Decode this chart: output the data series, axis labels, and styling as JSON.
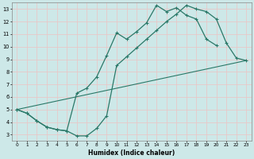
{
  "xlabel": "Humidex (Indice chaleur)",
  "xlim": [
    -0.5,
    23.5
  ],
  "ylim": [
    2.5,
    13.5
  ],
  "xticks": [
    0,
    1,
    2,
    3,
    4,
    5,
    6,
    7,
    8,
    9,
    10,
    11,
    12,
    13,
    14,
    15,
    16,
    17,
    18,
    19,
    20,
    21,
    22,
    23
  ],
  "yticks": [
    3,
    4,
    5,
    6,
    7,
    8,
    9,
    10,
    11,
    12,
    13
  ],
  "bg_color": "#cde8e8",
  "line_color": "#2a7868",
  "grid_color": "#e8c8c8",
  "curve1_x": [
    0,
    1,
    2,
    3,
    4,
    5,
    6,
    7,
    8,
    9,
    10,
    11,
    12,
    13,
    14,
    15,
    16,
    17,
    18,
    19,
    20
  ],
  "curve1_y": [
    5.0,
    4.7,
    4.1,
    3.6,
    3.4,
    3.3,
    6.3,
    6.7,
    7.6,
    9.3,
    11.1,
    10.6,
    11.2,
    11.9,
    13.3,
    12.8,
    13.1,
    12.5,
    12.2,
    10.6,
    10.1
  ],
  "curve2_x": [
    0,
    1,
    2,
    3,
    4,
    5,
    6,
    7,
    8,
    9,
    10,
    11,
    12,
    13,
    14,
    15,
    16,
    17,
    18,
    19,
    20,
    21,
    22,
    23
  ],
  "curve2_y": [
    5.0,
    4.7,
    4.1,
    3.6,
    3.4,
    3.3,
    2.9,
    2.9,
    3.5,
    4.5,
    8.5,
    9.2,
    9.9,
    10.6,
    11.3,
    12.0,
    12.6,
    13.3,
    13.0,
    12.8,
    12.2,
    10.3,
    9.1,
    8.9
  ],
  "curve3_x": [
    0,
    23
  ],
  "curve3_y": [
    5.0,
    8.9
  ]
}
